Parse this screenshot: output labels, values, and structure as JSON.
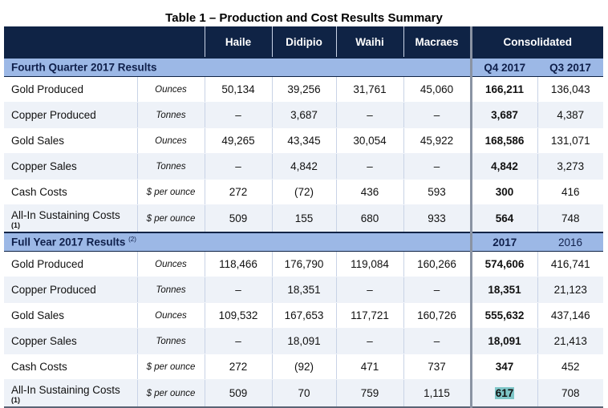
{
  "title": "Table 1 – Production and Cost Results Summary",
  "header": {
    "columns": [
      "Haile",
      "Didipio",
      "Waihi",
      "Macraes",
      "Consolidated"
    ]
  },
  "sections": [
    {
      "name": "Fourth Quarter 2017 Results",
      "note": "",
      "period_a": "Q4 2017",
      "period_b": "Q3 2017",
      "rows": [
        {
          "label": "Gold Produced",
          "note": "",
          "unit": "Ounces",
          "values": [
            "50,134",
            "39,256",
            "31,761",
            "45,060"
          ],
          "a": "166,211",
          "b": "136,043"
        },
        {
          "label": "Copper Produced",
          "note": "",
          "unit": "Tonnes",
          "values": [
            "–",
            "3,687",
            "–",
            "–"
          ],
          "a": "3,687",
          "b": "4,387"
        },
        {
          "label": "Gold Sales",
          "note": "",
          "unit": "Ounces",
          "values": [
            "49,265",
            "43,345",
            "30,054",
            "45,922"
          ],
          "a": "168,586",
          "b": "131,071"
        },
        {
          "label": "Copper Sales",
          "note": "",
          "unit": "Tonnes",
          "values": [
            "–",
            "4,842",
            "–",
            "–"
          ],
          "a": "4,842",
          "b": "3,273"
        },
        {
          "label": "Cash Costs",
          "note": "",
          "unit": "$ per ounce",
          "values": [
            "272",
            "(72)",
            "436",
            "593"
          ],
          "a": "300",
          "b": "416"
        },
        {
          "label": "All-In Sustaining Costs",
          "note": "(1)",
          "unit": "$ per ounce",
          "values": [
            "509",
            "155",
            "680",
            "933"
          ],
          "a": "564",
          "b": "748"
        }
      ]
    },
    {
      "name": "Full Year 2017 Results",
      "note": "(2)",
      "period_a": "2017",
      "period_b": "2016",
      "rows": [
        {
          "label": "Gold Produced",
          "note": "",
          "unit": "Ounces",
          "values": [
            "118,466",
            "176,790",
            "119,084",
            "160,266"
          ],
          "a": "574,606",
          "b": "416,741"
        },
        {
          "label": "Copper Produced",
          "note": "",
          "unit": "Tonnes",
          "values": [
            "–",
            "18,351",
            "–",
            "–"
          ],
          "a": "18,351",
          "b": "21,123"
        },
        {
          "label": "Gold Sales",
          "note": "",
          "unit": "Ounces",
          "values": [
            "109,532",
            "167,653",
            "117,721",
            "160,726"
          ],
          "a": "555,632",
          "b": "437,146"
        },
        {
          "label": "Copper Sales",
          "note": "",
          "unit": "Tonnes",
          "values": [
            "–",
            "18,091",
            "–",
            "–"
          ],
          "a": "18,091",
          "b": "21,413"
        },
        {
          "label": "Cash Costs",
          "note": "",
          "unit": "$ per ounce",
          "values": [
            "272",
            "(92)",
            "471",
            "737"
          ],
          "a": "347",
          "b": "452"
        },
        {
          "label": "All-In Sustaining Costs",
          "note": "(1)",
          "unit": "$ per ounce",
          "values": [
            "509",
            "70",
            "759",
            "1,115"
          ],
          "a": "617",
          "b": "708"
        }
      ]
    }
  ],
  "colors": {
    "header_bg": "#0f2345",
    "section_bg": "#9cb8e6",
    "alt_row": "#eef2f8",
    "highlight": "#7fc6c8"
  }
}
